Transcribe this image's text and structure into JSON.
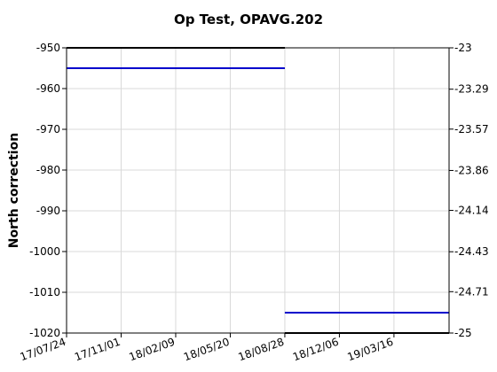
{
  "chart_data": {
    "type": "line",
    "title": "Op Test, OPAVG.202",
    "ylabel": "North correction",
    "ylabel_right": "",
    "x_axis_type": "date",
    "xlim": [
      "2017-07-24",
      "2019-06-25"
    ],
    "ylim": [
      -1020,
      -950
    ],
    "ylim_right": [
      -25,
      -23
    ],
    "x_ticks": [
      {
        "date": "2017-07-24",
        "label": "17/07/24"
      },
      {
        "date": "2017-11-01",
        "label": "17/11/01"
      },
      {
        "date": "2018-02-09",
        "label": "18/02/09"
      },
      {
        "date": "2018-05-20",
        "label": "18/05/20"
      },
      {
        "date": "2018-08-28",
        "label": "18/08/28"
      },
      {
        "date": "2018-12-06",
        "label": "18/12/06"
      },
      {
        "date": "2019-03-16",
        "label": "19/03/16"
      }
    ],
    "y_ticks": [
      -950,
      -960,
      -970,
      -980,
      -990,
      -1000,
      -1010,
      -1020
    ],
    "y_tick_labels": [
      "-950",
      "-960",
      "-970",
      "-980",
      "-990",
      "-1000",
      "-1010",
      "-1020"
    ],
    "y_right_ticks": [
      -23,
      -23.29,
      -23.57,
      -23.86,
      -24.14,
      -24.43,
      -24.71,
      -25
    ],
    "y_right_tick_labels": [
      "-23",
      "-23.29",
      "-23.57",
      "-23.86",
      "-24.14",
      "-24.43",
      "-24.71",
      "-25"
    ],
    "grid": true,
    "series": [
      {
        "color": "#0000cc",
        "segments": [
          {
            "x": [
              "2017-07-24",
              "2018-08-28"
            ],
            "y": [
              -955,
              -955
            ]
          },
          {
            "x": [
              "2018-08-28",
              "2019-06-25"
            ],
            "y": [
              -1015,
              -1015
            ]
          }
        ]
      },
      {
        "color": "#000000",
        "segments": [
          {
            "x": [
              "2017-07-24",
              "2018-08-28"
            ],
            "y": [
              -950,
              -950
            ]
          },
          {
            "x": [
              "2018-08-28",
              "2019-06-25"
            ],
            "y": [
              -1020,
              -1020
            ]
          }
        ]
      }
    ]
  }
}
